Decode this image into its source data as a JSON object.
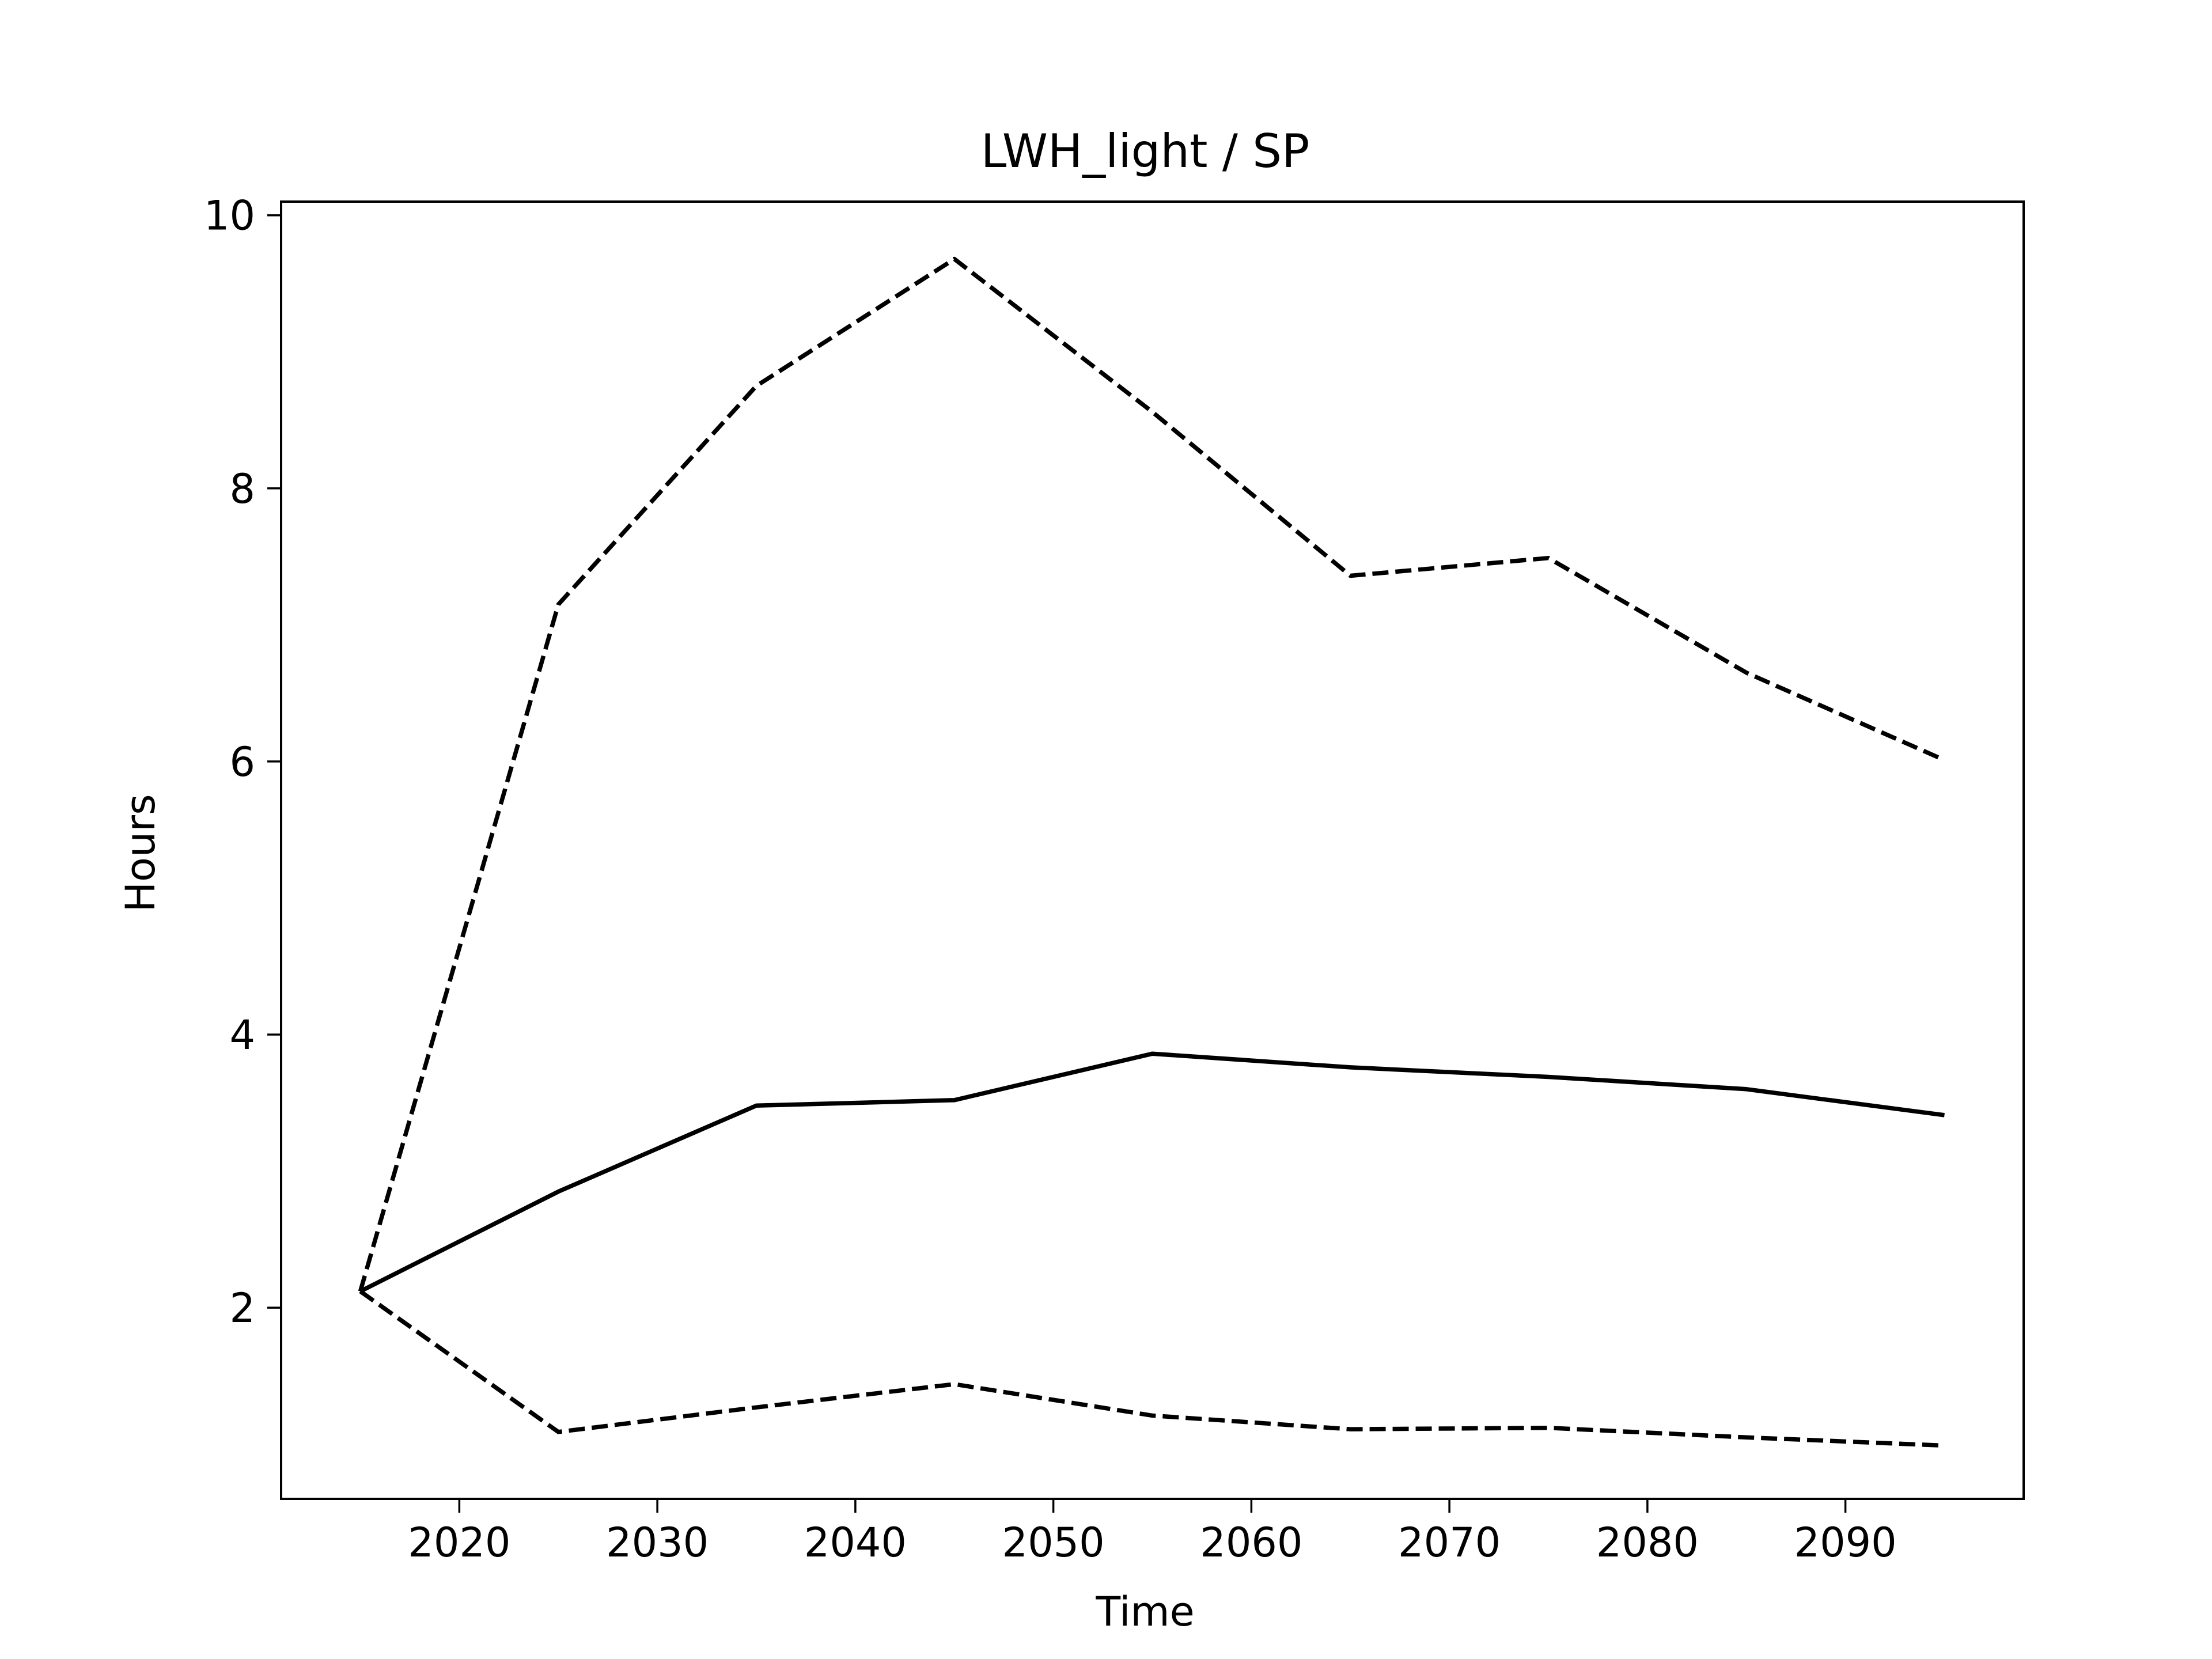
{
  "chart_data": {
    "type": "line",
    "title": "LWH_light / SP",
    "xlabel": "Time",
    "ylabel": "Hours",
    "xlim": [
      2011,
      2099
    ],
    "ylim": [
      0.6,
      10.1
    ],
    "x_ticks": [
      2020,
      2030,
      2040,
      2050,
      2060,
      2070,
      2080,
      2090
    ],
    "y_ticks": [
      2,
      4,
      6,
      8,
      10
    ],
    "grid": false,
    "x": [
      2015,
      2025,
      2035,
      2045,
      2055,
      2065,
      2075,
      2085,
      2095
    ],
    "series": [
      {
        "style": "solid",
        "color": "#000000",
        "values": [
          2.12,
          2.85,
          3.48,
          3.52,
          3.86,
          3.76,
          3.69,
          3.6,
          3.41
        ]
      },
      {
        "style": "dashed",
        "color": "#000000",
        "values": [
          2.12,
          7.15,
          8.75,
          9.68,
          8.56,
          7.36,
          7.49,
          6.65,
          6.01
        ]
      },
      {
        "style": "dashed",
        "color": "#000000",
        "values": [
          2.12,
          1.09,
          1.27,
          1.44,
          1.21,
          1.11,
          1.12,
          1.05,
          0.99
        ]
      }
    ]
  }
}
